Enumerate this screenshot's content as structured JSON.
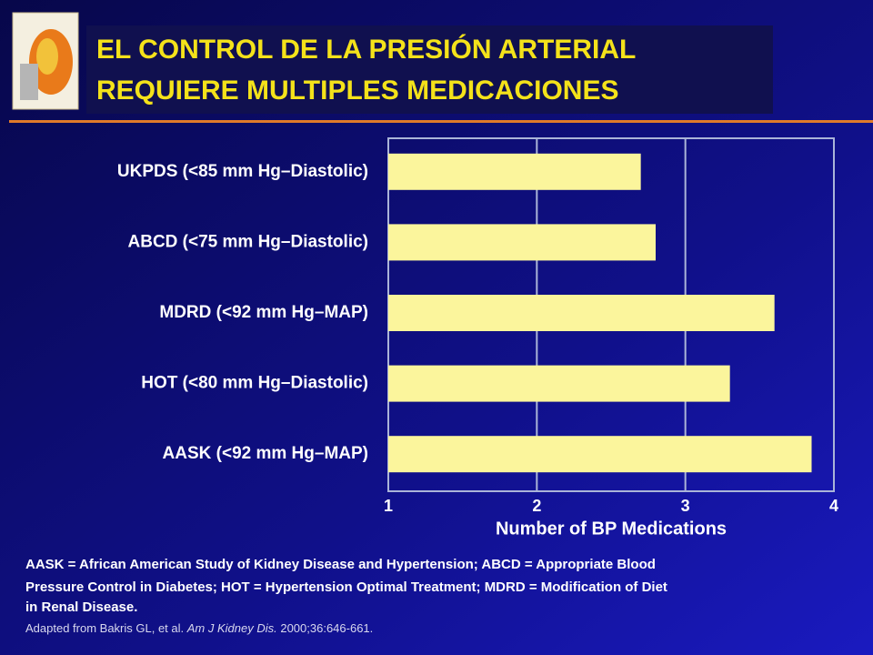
{
  "chart_data": {
    "type": "bar",
    "orientation": "horizontal",
    "title_lines": [
      "EL CONTROL DE LA PRESIÓN ARTERIAL",
      "REQUIERE MULTIPLES MEDICACIONES"
    ],
    "categories": [
      "UKPDS (<85 mm Hg–Diastolic)",
      "ABCD (<75 mm Hg–Diastolic)",
      "MDRD (<92 mm Hg–MAP)",
      "HOT (<80 mm Hg–Diastolic)",
      "AASK (<92 mm Hg–MAP)"
    ],
    "values": [
      2.7,
      2.8,
      3.6,
      3.3,
      3.85
    ],
    "color": "#fbf59c",
    "xlim": [
      1,
      4
    ],
    "xticks": [
      1,
      2,
      3,
      4
    ],
    "grid": true,
    "xlabel": "Number of BP Medications",
    "footnote_lines": [
      "AASK = African American Study of Kidney Disease and Hypertension; ABCD = Appropriate Blood",
      "Pressure Control in Diabetes; HOT = Hypertension Optimal Treatment; MDRD = Modification of Diet",
      "in Renal Disease."
    ],
    "source": [
      "Adapted from Bakris GL, et al. ",
      "Am J Kidney Dis.",
      " 2000;36:646-661."
    ]
  }
}
